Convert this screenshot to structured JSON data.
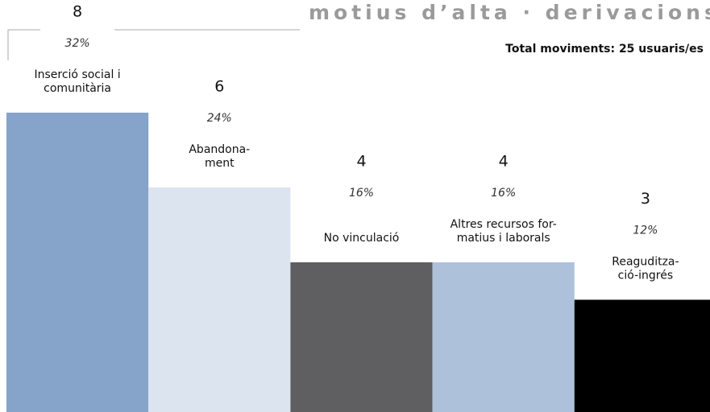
{
  "chart_data": {
    "type": "bar",
    "title": "motius d’alta · derivacions",
    "subtitle": "Total moviments: 25 usuaris/es",
    "categories": [
      [
        "Inserció social i",
        "comunitària"
      ],
      [
        "Abandona-",
        "ment"
      ],
      [
        "No vinculació"
      ],
      [
        "Altres recursos for-",
        "matius i laborals"
      ],
      [
        "Reaguditza-",
        "ció-ingrés"
      ]
    ],
    "values": [
      8,
      6,
      4,
      4,
      3
    ],
    "percentages": {
      "values": [
        32,
        24,
        16,
        16,
        12
      ],
      "value_labels": [
        "32%",
        "24%",
        "16%",
        "16%",
        "12%"
      ]
    },
    "colors": [
      "#86a3c9",
      "#dce4f0",
      "#5f5e60",
      "#aec1da",
      "#000000"
    ]
  }
}
